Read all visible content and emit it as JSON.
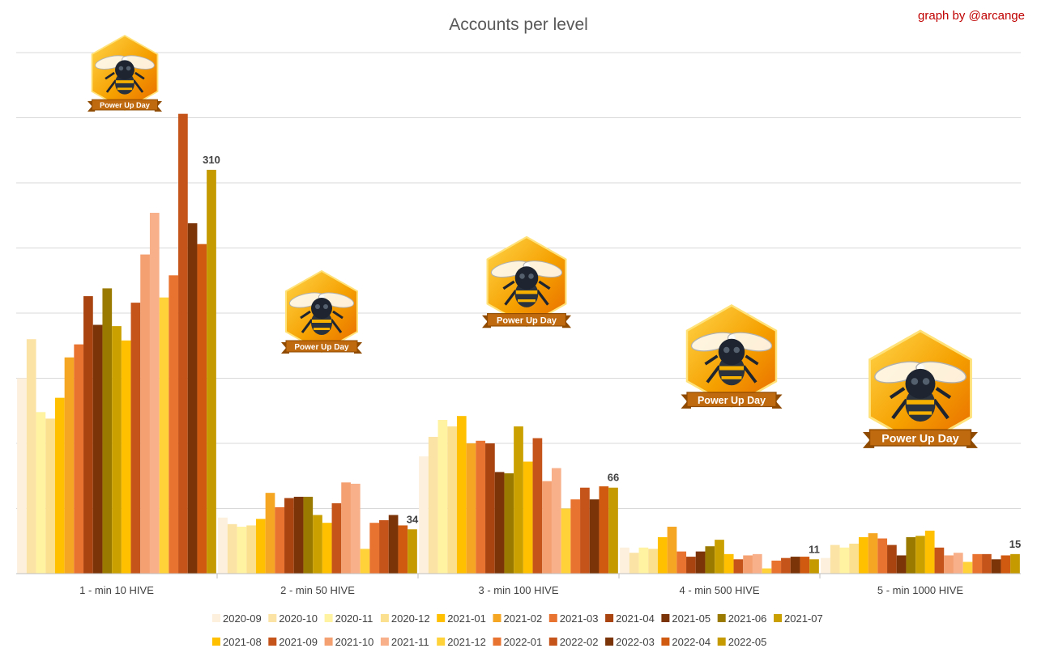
{
  "chart_data": {
    "type": "bar",
    "title": "Accounts per level",
    "credit": "graph by @arcange",
    "xlabel": "",
    "ylabel": "",
    "ylim": [
      0,
      400
    ],
    "grid": true,
    "legend_position": "bottom",
    "categories": [
      "1 - min 10 HIVE",
      "2 - min 50 HIVE",
      "3 - min 100 HIVE",
      "4 - min 500 HIVE",
      "5 - min 1000 HIVE"
    ],
    "series": [
      {
        "name": "2020-09",
        "color": "#fdf0dc",
        "values": [
          150,
          43,
          90,
          20,
          12
        ]
      },
      {
        "name": "2020-10",
        "color": "#fbe3a6",
        "values": [
          180,
          38,
          105,
          16,
          22
        ]
      },
      {
        "name": "2020-11",
        "color": "#fff2a0",
        "values": [
          124,
          36,
          118,
          20,
          20
        ]
      },
      {
        "name": "2020-12",
        "color": "#fbe08f",
        "values": [
          119,
          37,
          113,
          19,
          23
        ]
      },
      {
        "name": "2021-01",
        "color": "#ffc000",
        "values": [
          135,
          42,
          121,
          28,
          28
        ]
      },
      {
        "name": "2021-02",
        "color": "#f5a623",
        "values": [
          166,
          62,
          100,
          36,
          31
        ]
      },
      {
        "name": "2021-03",
        "color": "#e87330",
        "values": [
          176,
          51,
          102,
          17,
          27
        ]
      },
      {
        "name": "2021-04",
        "color": "#a94410",
        "values": [
          213,
          58,
          100,
          13,
          22
        ]
      },
      {
        "name": "2021-05",
        "color": "#7a3408",
        "values": [
          191,
          59,
          78,
          17,
          14
        ]
      },
      {
        "name": "2021-06",
        "color": "#9b7a00",
        "values": [
          219,
          59,
          77,
          21,
          28
        ]
      },
      {
        "name": "2021-07",
        "color": "#c9a000",
        "values": [
          190,
          45,
          113,
          26,
          29
        ]
      },
      {
        "name": "2021-08",
        "color": "#ffc000",
        "values": [
          179,
          39,
          86,
          15,
          33
        ]
      },
      {
        "name": "2021-09",
        "color": "#c5541a",
        "values": [
          208,
          54,
          104,
          11,
          20
        ]
      },
      {
        "name": "2021-10",
        "color": "#f4a070",
        "values": [
          245,
          70,
          71,
          14,
          14
        ]
      },
      {
        "name": "2021-11",
        "color": "#f8b08a",
        "values": [
          277,
          69,
          81,
          15,
          16
        ]
      },
      {
        "name": "2021-12",
        "color": "#ffd23a",
        "values": [
          212,
          19,
          50,
          4,
          9
        ]
      },
      {
        "name": "2022-01",
        "color": "#e87330",
        "values": [
          229,
          39,
          57,
          10,
          15
        ]
      },
      {
        "name": "2022-02",
        "color": "#c5541a",
        "values": [
          353,
          41,
          66,
          12,
          15
        ]
      },
      {
        "name": "2022-03",
        "color": "#7a3408",
        "values": [
          269,
          45,
          57,
          13,
          11
        ]
      },
      {
        "name": "2022-04",
        "color": "#d05a10",
        "values": [
          253,
          37,
          67,
          13,
          14
        ]
      },
      {
        "name": "2022-05",
        "color": "#c49a00",
        "values": [
          310,
          34,
          66,
          11,
          15
        ]
      }
    ],
    "data_labels": [
      {
        "category": "1 - min 10 HIVE",
        "series": "2022-05",
        "text": "310"
      },
      {
        "category": "2 - min 50 HIVE",
        "series": "2022-05",
        "text": "34"
      },
      {
        "category": "3 - min 100 HIVE",
        "series": "2022-05",
        "text": "66"
      },
      {
        "category": "4 - min 500 HIVE",
        "series": "2022-05",
        "text": "11"
      },
      {
        "category": "5 - min 1000 HIVE",
        "series": "2022-05",
        "text": "15"
      }
    ]
  },
  "badges": [
    {
      "category": "1 - min 10 HIVE",
      "label": "Power Up Day",
      "icon": "bee-icon"
    },
    {
      "category": "2 - min 50 HIVE",
      "label": "Power Up Day",
      "icon": "bee-icon"
    },
    {
      "category": "3 - min 100 HIVE",
      "label": "Power Up Day",
      "icon": "bee-icon"
    },
    {
      "category": "4 - min 500 HIVE",
      "label": "Power Up Day",
      "icon": "bee-icon"
    },
    {
      "category": "5 - min 1000 HIVE",
      "label": "Power Up Day",
      "icon": "bee-icon"
    }
  ]
}
